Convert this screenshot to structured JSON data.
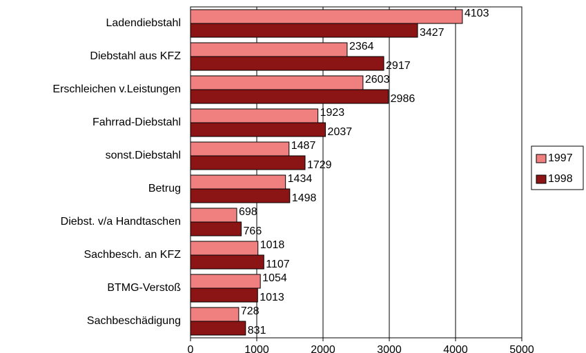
{
  "chart_data": {
    "type": "barh",
    "categories": [
      "Ladendiebstahl",
      "Diebstahl aus KFZ",
      "Erschleichen v.Leistungen",
      "Fahrrad-Diebstahl",
      "sonst.Diebstahl",
      "Betrug",
      "Diebst. v/a Handtaschen",
      "Sachbesch. an KFZ",
      "BTMG-Verstoß",
      "Sachbeschädigung"
    ],
    "series": [
      {
        "name": "1997",
        "color": "#f08080",
        "values": [
          4103,
          2364,
          2603,
          1923,
          1487,
          1434,
          698,
          1018,
          1054,
          728
        ]
      },
      {
        "name": "1998",
        "color": "#8b1414",
        "values": [
          3427,
          2917,
          2986,
          2037,
          1729,
          1498,
          766,
          1107,
          1013,
          831
        ]
      }
    ],
    "xlim": [
      0,
      5000
    ],
    "xticks": [
      0,
      1000,
      2000,
      3000,
      4000,
      5000
    ],
    "grid": true,
    "legend": "right"
  }
}
